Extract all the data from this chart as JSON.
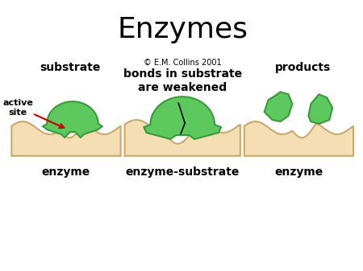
{
  "title": "Enzymes",
  "title_fontsize": 26,
  "bg_color": "#ffffff",
  "enzyme_fill": "#F5DEB3",
  "enzyme_edge": "#C8A96E",
  "substrate_fill": "#5DC85D",
  "substrate_edge": "#3A9A3A",
  "labels": {
    "substrate": "substrate",
    "active_site": "active\nsite",
    "copyright": "© E.M. Collins 2001",
    "bonds": "bonds in substrate\nare weakened",
    "products": "products",
    "enzyme1": "enzyme",
    "enzyme_substrate": "enzyme-substrate",
    "enzyme2": "enzyme"
  },
  "label_fontsize": 10,
  "label_bold": true,
  "arrow_color": "#CC0000"
}
